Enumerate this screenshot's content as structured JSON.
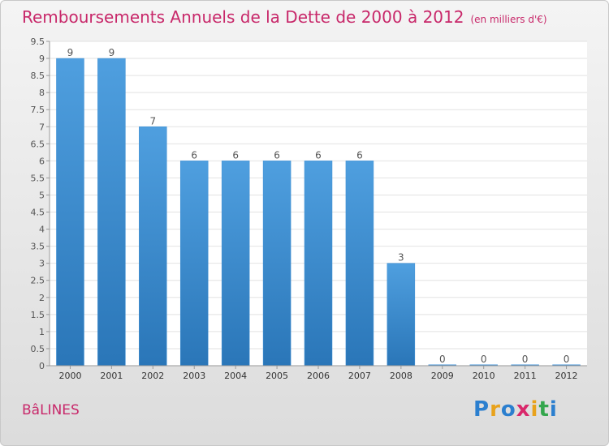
{
  "header": {
    "title": "Remboursements Annuels de la Dette de 2000 à 2012",
    "unit": "(en milliers d'€)"
  },
  "footer": {
    "commune": "BâLINES",
    "logo": "Proxiti",
    "logo_colors": [
      "#2b7fcf",
      "#e8a21c",
      "#2b7fcf",
      "#d9286b",
      "#e8a21c",
      "#33a64c",
      "#2b7fcf"
    ]
  },
  "colors": {
    "bar": "#4f9fdf",
    "bar_dark": "#2a76b8",
    "accent": "#c8286a",
    "text": "#555555"
  },
  "chart_data": {
    "type": "bar",
    "title": "Remboursements Annuels de la Dette de 2000 à 2012",
    "subtitle": "(en milliers d'€)",
    "categories": [
      "2000",
      "2001",
      "2002",
      "2003",
      "2004",
      "2005",
      "2006",
      "2007",
      "2008",
      "2009",
      "2010",
      "2011",
      "2012"
    ],
    "values": [
      9,
      9,
      7,
      6,
      6,
      6,
      6,
      6,
      3,
      0,
      0,
      0,
      0
    ],
    "labels": [
      "9",
      "9",
      "7",
      "6",
      "6",
      "6",
      "6",
      "6",
      "3",
      "0",
      "0",
      "0",
      "0"
    ],
    "yticks": [
      "0",
      "0.5",
      "1",
      "1.5",
      "2",
      "2.5",
      "3",
      "3.5",
      "4",
      "4.5",
      "5",
      "5.5",
      "6",
      "6.5",
      "7",
      "7.5",
      "8",
      "8.5",
      "9",
      "9.5"
    ],
    "ylim": [
      0,
      9.5
    ],
    "grid": true
  }
}
